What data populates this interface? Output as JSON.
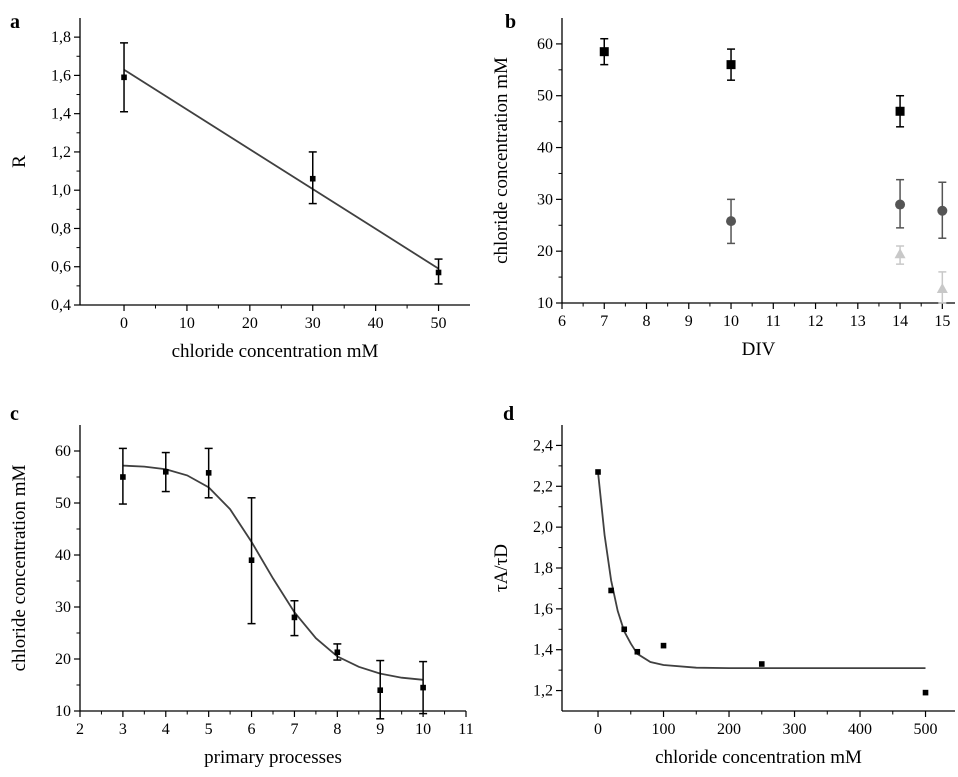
{
  "chart_data": [
    {
      "id": "a",
      "panel_label": "a",
      "type": "scatter",
      "xlabel": "chloride concentration mM",
      "ylabel": "R",
      "xlim": [
        -7,
        55
      ],
      "ylim": [
        0.4,
        1.9
      ],
      "xticks": [
        0,
        10,
        20,
        30,
        40,
        50
      ],
      "xtick_labels": [
        "0",
        "10",
        "20",
        "30",
        "40",
        "50"
      ],
      "yticks": [
        0.4,
        0.6,
        0.8,
        1.0,
        1.2,
        1.4,
        1.6,
        1.8
      ],
      "ytick_labels": [
        "0,4",
        "0,6",
        "0,8",
        "1,0",
        "1,2",
        "1,4",
        "1,6",
        "1,8"
      ],
      "series": [
        {
          "marker": "square",
          "color": "#000000",
          "points": [
            {
              "x": 0,
              "y": 1.59,
              "lo": 1.41,
              "hi": 1.77
            },
            {
              "x": 30,
              "y": 1.06,
              "lo": 0.93,
              "hi": 1.2
            },
            {
              "x": 50,
              "y": 0.57,
              "lo": 0.51,
              "hi": 0.64
            }
          ]
        }
      ],
      "fit": {
        "kind": "linear",
        "color": "#404040",
        "points": [
          [
            0,
            1.63
          ],
          [
            50,
            0.59
          ]
        ]
      }
    },
    {
      "id": "b",
      "panel_label": "b",
      "type": "scatter",
      "xlabel": "DIV",
      "ylabel": "chloride concentration mM",
      "xlim": [
        6,
        15.3
      ],
      "ylim": [
        10,
        65
      ],
      "xticks": [
        6,
        7,
        8,
        9,
        10,
        11,
        12,
        13,
        14,
        15
      ],
      "xtick_labels": [
        "6",
        "7",
        "8",
        "9",
        "10",
        "11",
        "12",
        "13",
        "14",
        "15"
      ],
      "yticks": [
        10,
        20,
        30,
        40,
        50,
        60
      ],
      "ytick_labels": [
        "10",
        "20",
        "30",
        "40",
        "50",
        "60"
      ],
      "series": [
        {
          "marker": "square",
          "color": "#000000",
          "points": [
            {
              "x": 7,
              "y": 58.5,
              "lo": 56.0,
              "hi": 61.0
            },
            {
              "x": 10,
              "y": 56.0,
              "lo": 53.0,
              "hi": 59.0
            },
            {
              "x": 14,
              "y": 47.0,
              "lo": 44.0,
              "hi": 50.0
            }
          ]
        },
        {
          "marker": "circle",
          "color": "#555555",
          "points": [
            {
              "x": 10,
              "y": 25.8,
              "lo": 21.5,
              "hi": 30.0
            },
            {
              "x": 14,
              "y": 29.0,
              "lo": 24.5,
              "hi": 33.8
            },
            {
              "x": 15,
              "y": 27.8,
              "lo": 22.5,
              "hi": 33.3
            }
          ]
        },
        {
          "marker": "triangle",
          "color": "#c8c8c8",
          "points": [
            {
              "x": 14,
              "y": 19.5,
              "lo": 17.5,
              "hi": 21.0
            },
            {
              "x": 15,
              "y": 12.8,
              "lo": 10.0,
              "hi": 16.0
            }
          ]
        }
      ]
    },
    {
      "id": "c",
      "panel_label": "c",
      "type": "scatter",
      "xlabel": "primary processes",
      "ylabel": "chloride concentration mM",
      "xlim": [
        2,
        11
      ],
      "ylim": [
        10,
        65
      ],
      "xticks": [
        2,
        3,
        4,
        5,
        6,
        7,
        8,
        9,
        10,
        11
      ],
      "xtick_labels": [
        "2",
        "3",
        "4",
        "5",
        "6",
        "7",
        "8",
        "9",
        "10",
        "11"
      ],
      "yticks": [
        10,
        20,
        30,
        40,
        50,
        60
      ],
      "ytick_labels": [
        "10",
        "20",
        "30",
        "40",
        "50",
        "60"
      ],
      "series": [
        {
          "marker": "square",
          "color": "#000000",
          "points": [
            {
              "x": 3,
              "y": 55.0,
              "lo": 49.8,
              "hi": 60.5
            },
            {
              "x": 4,
              "y": 56.0,
              "lo": 52.2,
              "hi": 59.7
            },
            {
              "x": 5,
              "y": 55.8,
              "lo": 51.0,
              "hi": 60.5
            },
            {
              "x": 6,
              "y": 39.0,
              "lo": 26.8,
              "hi": 51.0
            },
            {
              "x": 7,
              "y": 28.0,
              "lo": 24.5,
              "hi": 31.2
            },
            {
              "x": 8,
              "y": 21.3,
              "lo": 19.8,
              "hi": 22.9
            },
            {
              "x": 9,
              "y": 14.0,
              "lo": 8.5,
              "hi": 19.7
            },
            {
              "x": 10,
              "y": 14.5,
              "lo": 9.5,
              "hi": 19.5
            }
          ]
        }
      ],
      "fit": {
        "kind": "sigmoid",
        "color": "#404040",
        "points": [
          [
            3.0,
            57.2
          ],
          [
            3.5,
            57.0
          ],
          [
            4.0,
            56.5
          ],
          [
            4.5,
            55.3
          ],
          [
            5.0,
            53.0
          ],
          [
            5.5,
            48.8
          ],
          [
            6.0,
            42.5
          ],
          [
            6.5,
            35.5
          ],
          [
            7.0,
            29.0
          ],
          [
            7.5,
            24.0
          ],
          [
            8.0,
            20.5
          ],
          [
            8.5,
            18.5
          ],
          [
            9.0,
            17.2
          ],
          [
            9.5,
            16.4
          ],
          [
            10.0,
            16.0
          ]
        ]
      }
    },
    {
      "id": "d",
      "panel_label": "d",
      "type": "scatter",
      "xlabel": "chloride concentration mM",
      "ylabel_main": "τA",
      "ylabel_sub": "/τD",
      "xlim": [
        -55,
        545
      ],
      "ylim": [
        1.1,
        2.5
      ],
      "xticks": [
        0,
        100,
        200,
        300,
        400,
        500
      ],
      "xtick_labels": [
        "0",
        "100",
        "200",
        "300",
        "400",
        "500"
      ],
      "yticks": [
        1.2,
        1.4,
        1.6,
        1.8,
        2.0,
        2.2,
        2.4
      ],
      "ytick_labels": [
        "1,2",
        "1,4",
        "1,6",
        "1,8",
        "2,0",
        "2,2",
        "2,4"
      ],
      "series": [
        {
          "marker": "square",
          "color": "#000000",
          "points": [
            {
              "x": 0,
              "y": 2.27
            },
            {
              "x": 20,
              "y": 1.69
            },
            {
              "x": 40,
              "y": 1.5
            },
            {
              "x": 60,
              "y": 1.39
            },
            {
              "x": 100,
              "y": 1.42
            },
            {
              "x": 250,
              "y": 1.33
            },
            {
              "x": 500,
              "y": 1.19
            }
          ]
        }
      ],
      "fit": {
        "kind": "exponential",
        "color": "#404040",
        "points": [
          [
            0,
            2.27
          ],
          [
            10,
            1.96
          ],
          [
            20,
            1.74
          ],
          [
            30,
            1.59
          ],
          [
            40,
            1.49
          ],
          [
            50,
            1.43
          ],
          [
            60,
            1.38
          ],
          [
            80,
            1.34
          ],
          [
            100,
            1.325
          ],
          [
            150,
            1.312
          ],
          [
            200,
            1.31
          ],
          [
            300,
            1.31
          ],
          [
            400,
            1.31
          ],
          [
            500,
            1.31
          ]
        ]
      }
    }
  ]
}
